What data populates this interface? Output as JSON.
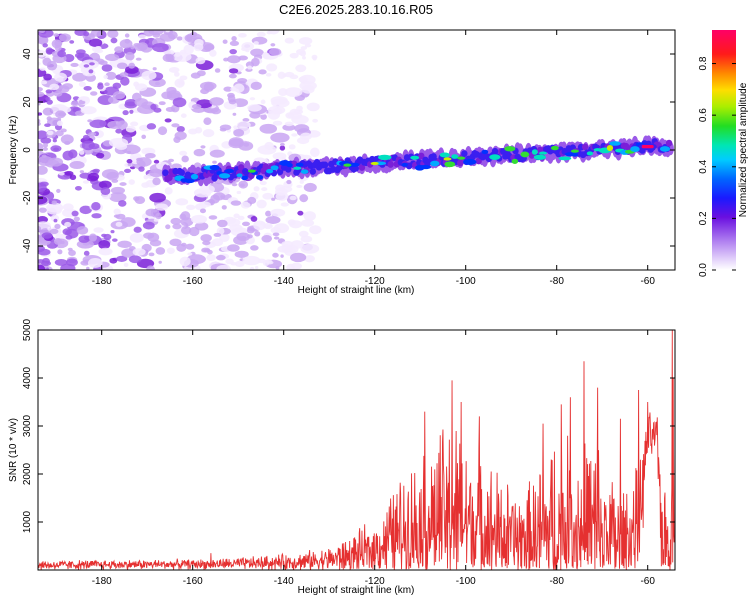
{
  "title": "C2E6.2025.283.10.16.R05",
  "colors": {
    "snr_line": "#e53030",
    "spectrogram_scale": [
      "#f4eaff",
      "#c9a6f2",
      "#9b59e8",
      "#7a1fd8",
      "#3a1ff0",
      "#0033ff",
      "#00aaff",
      "#00e0c0",
      "#33dd33",
      "#ccee00",
      "#ffcc00",
      "#ff7700",
      "#ff1a1a",
      "#ff0066"
    ]
  },
  "chart_data": [
    {
      "type": "heatmap",
      "title": "C2E6.2025.283.10.16.R05",
      "xlabel": "Height of straight line (km)",
      "ylabel": "Frequency (Hz)",
      "xlim": [
        -194,
        -54
      ],
      "ylim": [
        -50,
        50
      ],
      "x_ticks": [
        -180,
        -160,
        -140,
        -120,
        -100,
        -80,
        -60
      ],
      "y_ticks": [
        -40,
        -20,
        0,
        20,
        40
      ],
      "x_tick_labels": [
        "-180",
        "-160",
        "-140",
        "-120",
        "-100",
        "-80",
        "-60"
      ],
      "y_tick_labels": [
        "-40",
        "-20",
        "0",
        "20",
        "40"
      ],
      "colorbar": {
        "label": "Normalized spectral amplitude",
        "range": [
          0.0,
          0.93
        ],
        "ticks": [
          0.0,
          0.2,
          0.4,
          0.6,
          0.8
        ],
        "tick_labels": [
          "0.0",
          "0.2",
          "0.4",
          "0.6",
          "0.8"
        ]
      },
      "features": [
        {
          "name": "signal trace",
          "x_range": [
            -166,
            -55
          ],
          "frequency_at_start_hz": -11,
          "frequency_at_end_hz": 2,
          "peak_amplitude": 0.9,
          "peak_at_km": -60
        },
        {
          "name": "noise region",
          "x_range": [
            -194,
            -133
          ],
          "frequency_range_hz": [
            -50,
            50
          ],
          "typical_amplitude": 0.15
        }
      ]
    },
    {
      "type": "line",
      "xlabel": "Height of straight line (km)",
      "ylabel": "SNR (10 * v/v)",
      "xlim": [
        -194,
        -54
      ],
      "ylim": [
        0,
        5000
      ],
      "x_ticks": [
        -180,
        -160,
        -140,
        -120,
        -100,
        -80,
        -60
      ],
      "y_ticks": [
        1000,
        2000,
        3000,
        4000,
        5000
      ],
      "x_tick_labels": [
        "-180",
        "-160",
        "-140",
        "-120",
        "-100",
        "-80",
        "-60"
      ],
      "y_tick_labels": [
        "1000",
        "2000",
        "3000",
        "4000",
        "5000"
      ],
      "series": [
        {
          "name": "SNR",
          "envelope": {
            "x": [
              -194,
              -180,
              -160,
              -150,
              -140,
              -135,
              -130,
              -125,
              -120,
              -118,
              -115,
              -112,
              -110,
              -108,
              -105,
              -103,
              -100,
              -98,
              -95,
              -92,
              -90,
              -88,
              -85,
              -82,
              -80,
              -78,
              -76,
              -74,
              -72,
              -70,
              -68,
              -65,
              -62,
              -60,
              -58,
              -57,
              -56,
              -55,
              -54
            ],
            "baseline": [
              100,
              110,
              120,
              130,
              160,
              180,
              220,
              300,
              420,
              550,
              750,
              900,
              900,
              1000,
              1100,
              1100,
              1000,
              950,
              800,
              700,
              650,
              600,
              650,
              750,
              800,
              850,
              800,
              750,
              750,
              650,
              600,
              550,
              900,
              2700,
              2800,
              900,
              500,
              900,
              1000
            ],
            "spread": [
              120,
              120,
              120,
              150,
              200,
              250,
              300,
              500,
              700,
              900,
              1300,
              1600,
              1700,
              1900,
              2200,
              2300,
              2100,
              1900,
              1700,
              1500,
              1300,
              1200,
              1500,
              2300,
              2400,
              2200,
              2400,
              2600,
              2500,
              2200,
              1800,
              1500,
              1400,
              700,
              500,
              1800,
              1400,
              3500,
              4200
            ],
            "spikes": [
              [
                -156,
                350
              ],
              [
                -109,
                3300
              ],
              [
                -103,
                3950
              ],
              [
                -101,
                3500
              ],
              [
                -97,
                3200
              ],
              [
                -83,
                3050
              ],
              [
                -79,
                3450
              ],
              [
                -77,
                3600
              ],
              [
                -74,
                4350
              ],
              [
                -71,
                3800
              ],
              [
                -66,
                3150
              ],
              [
                -62,
                3750
              ],
              [
                -60,
                3500
              ],
              [
                -54.6,
                5000
              ]
            ]
          }
        }
      ]
    }
  ]
}
